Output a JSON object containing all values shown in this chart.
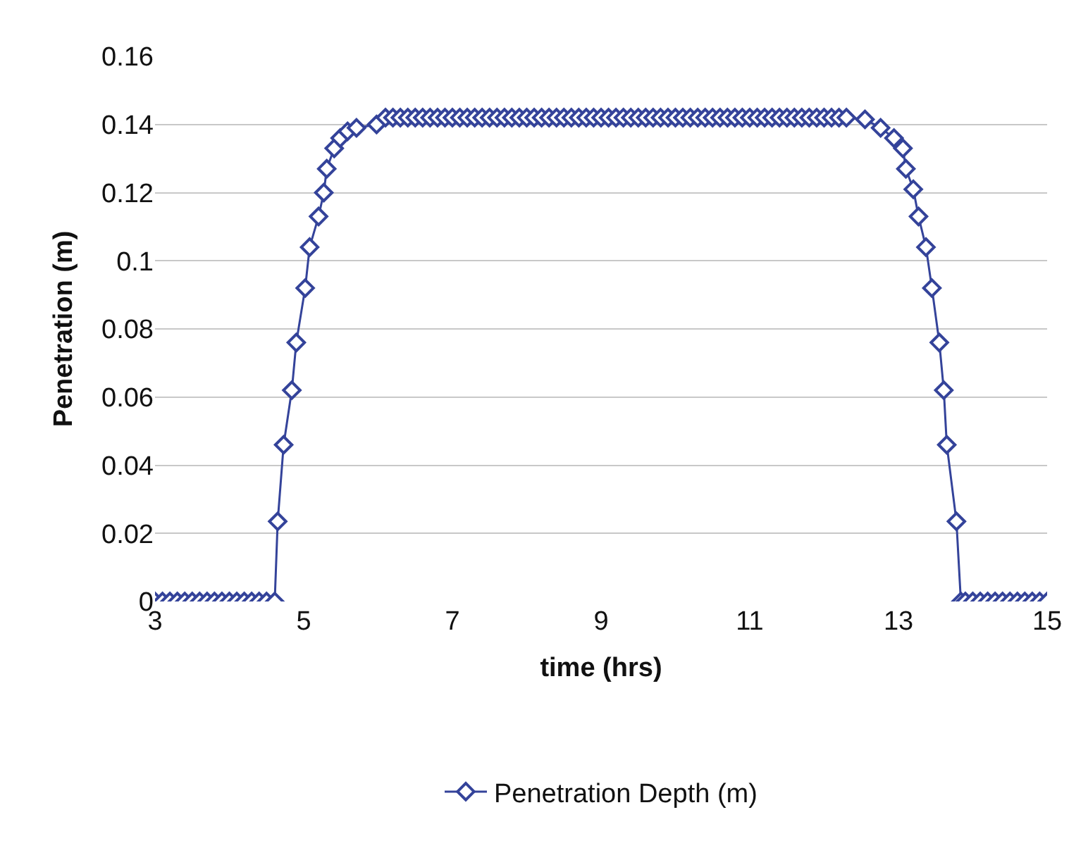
{
  "chart_data": {
    "type": "line",
    "xlabel": "time (hrs)",
    "ylabel": "Penetration (m)",
    "xlim": [
      3,
      15
    ],
    "xticks": [
      3,
      5,
      7,
      9,
      11,
      13,
      15
    ],
    "ylim": [
      0,
      0.16
    ],
    "yticks": [
      0,
      0.02,
      0.04,
      0.06,
      0.08,
      0.1,
      0.12,
      0.14,
      0.16
    ],
    "grid": "y",
    "legend": "bottom",
    "marker": "diamond",
    "line_style": "solid",
    "series": [
      {
        "name": "Penetration Depth (m)",
        "color": "#34439a",
        "x": [
          3.0,
          3.1,
          3.2,
          3.3,
          3.4,
          3.5,
          3.6,
          3.7,
          3.8,
          3.9,
          4.0,
          4.1,
          4.2,
          4.3,
          4.4,
          4.5,
          4.61,
          4.65,
          4.73,
          4.84,
          4.9,
          5.02,
          5.08,
          5.2,
          5.27,
          5.31,
          5.41,
          5.49,
          5.59,
          5.71,
          5.98,
          6.1,
          6.2,
          6.3,
          6.4,
          6.5,
          6.6,
          6.7,
          6.8,
          6.9,
          7.0,
          7.1,
          7.2,
          7.3,
          7.4,
          7.5,
          7.6,
          7.7,
          7.8,
          7.9,
          8.0,
          8.1,
          8.2,
          8.3,
          8.4,
          8.5,
          8.6,
          8.7,
          8.8,
          8.9,
          9.0,
          9.1,
          9.2,
          9.3,
          9.4,
          9.5,
          9.6,
          9.7,
          9.8,
          9.9,
          10.0,
          10.1,
          10.2,
          10.3,
          10.4,
          10.5,
          10.6,
          10.7,
          10.8,
          10.9,
          11.0,
          11.1,
          11.2,
          11.3,
          11.4,
          11.5,
          11.6,
          11.7,
          11.8,
          11.9,
          12.0,
          12.1,
          12.2,
          12.3,
          12.55,
          12.76,
          12.94,
          13.06,
          13.1,
          13.2,
          13.27,
          13.37,
          13.45,
          13.55,
          13.61,
          13.65,
          13.78,
          13.84,
          13.9,
          14.0,
          14.1,
          14.2,
          14.3,
          14.4,
          14.5,
          14.6,
          14.7,
          14.8,
          14.9,
          15.0
        ],
        "values": [
          0,
          0,
          0,
          0,
          0,
          0,
          0,
          0,
          0,
          0,
          0,
          0,
          0,
          0,
          0,
          0,
          0,
          0.0235,
          0.046,
          0.062,
          0.076,
          0.092,
          0.104,
          0.113,
          0.12,
          0.127,
          0.133,
          0.136,
          0.138,
          0.139,
          0.14,
          0.142,
          0.142,
          0.142,
          0.142,
          0.142,
          0.142,
          0.142,
          0.142,
          0.142,
          0.142,
          0.142,
          0.142,
          0.142,
          0.142,
          0.142,
          0.142,
          0.142,
          0.142,
          0.142,
          0.142,
          0.142,
          0.142,
          0.142,
          0.142,
          0.142,
          0.142,
          0.142,
          0.142,
          0.142,
          0.142,
          0.142,
          0.142,
          0.142,
          0.142,
          0.142,
          0.142,
          0.142,
          0.142,
          0.142,
          0.142,
          0.142,
          0.142,
          0.142,
          0.142,
          0.142,
          0.142,
          0.142,
          0.142,
          0.142,
          0.142,
          0.142,
          0.142,
          0.142,
          0.142,
          0.142,
          0.142,
          0.142,
          0.142,
          0.142,
          0.142,
          0.142,
          0.142,
          0.142,
          0.1415,
          0.139,
          0.136,
          0.133,
          0.127,
          0.121,
          0.113,
          0.104,
          0.092,
          0.076,
          0.062,
          0.046,
          0.0235,
          0,
          0,
          0,
          0,
          0,
          0,
          0,
          0,
          0,
          0,
          0,
          0,
          0
        ]
      }
    ]
  }
}
